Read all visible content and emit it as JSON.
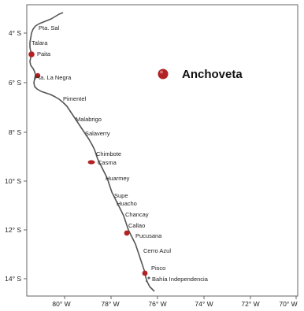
{
  "map": {
    "y_ticks": [
      "4° S",
      "6° S",
      "8° S",
      "10° S",
      "12° S",
      "14° S"
    ],
    "x_ticks": [
      "80° W",
      "78° W",
      "76° W",
      "74° W",
      "72° W",
      "70° W"
    ],
    "legend": {
      "label": "Anchoveta",
      "marker_color": "#b22222"
    },
    "coast_color": "#555555",
    "frame_color": "#666666",
    "places": [
      "Pta. Sal",
      "Talara",
      "Paita",
      "Pta. La Negra",
      "Pimentel",
      "Malabrigo",
      "Salaverry",
      "Chimbote",
      "Casma",
      "Huarmey",
      "Supe",
      "Huacho",
      "Chancay",
      "Callao",
      "Pucusana",
      "Cerro Azul",
      "Pisco",
      "Bahía Independencia"
    ],
    "anchoveta_sites": [
      "Paita",
      "Pta. La Negra",
      "Chimbote",
      "Callao",
      "Pisco"
    ]
  }
}
